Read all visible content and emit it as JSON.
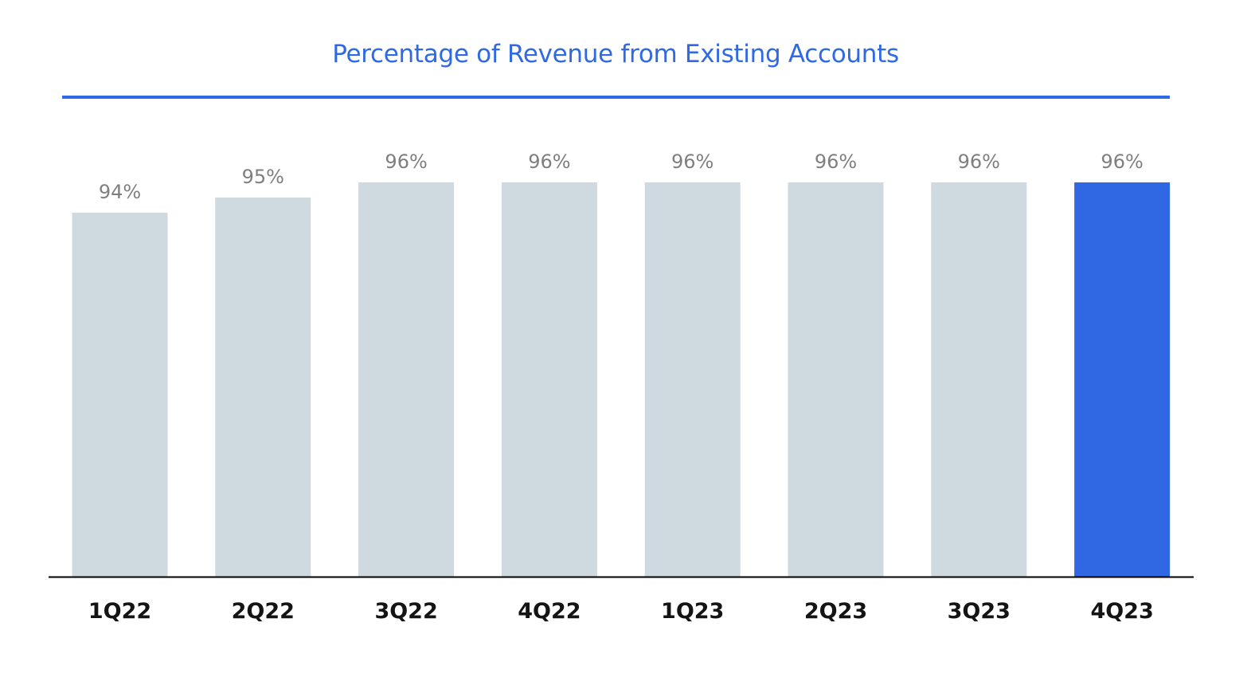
{
  "chart_data": {
    "type": "bar",
    "title": "Percentage of Revenue from Existing Accounts",
    "xlabel": "",
    "ylabel": "",
    "categories": [
      "1Q22",
      "2Q22",
      "3Q22",
      "4Q22",
      "1Q23",
      "2Q23",
      "3Q23",
      "4Q23"
    ],
    "values": [
      94,
      95,
      96,
      96,
      96,
      96,
      96,
      96
    ],
    "value_labels": [
      "94%",
      "95%",
      "96%",
      "96%",
      "96%",
      "96%",
      "96%",
      "96%"
    ],
    "ylim": [
      70,
      96
    ],
    "grid": false,
    "highlight_index": 7,
    "colors": {
      "title": "#2f69e3",
      "rule": "#2f69e3",
      "bar_default": "#cfd9e0",
      "bar_highlight": "#3068e4",
      "axis": "#000000",
      "value_label": "#7f7f7f",
      "category_label": "#141414"
    }
  }
}
